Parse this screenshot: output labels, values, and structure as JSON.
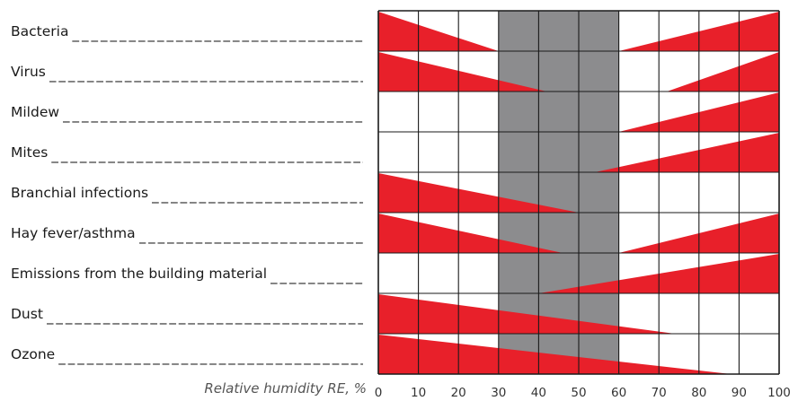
{
  "chart_data": {
    "type": "bar",
    "xlabel": "Relative humidity RE, %",
    "x_ticks": [
      "0",
      "10",
      "20",
      "30",
      "40",
      "50",
      "60",
      "70",
      "80",
      "90",
      "100"
    ],
    "xlim": [
      0,
      100
    ],
    "optimal_zone": [
      30,
      60
    ],
    "colors": {
      "wedge": "#e8202a",
      "optimal": "#8c8c8e",
      "grid": "#1a1a1a"
    },
    "categories": [
      {
        "label": "Bacteria",
        "low_end": 30,
        "high_start": 60
      },
      {
        "label": "Virus",
        "low_end": 42,
        "high_start": 72
      },
      {
        "label": "Mildew",
        "low_end": null,
        "high_start": 60
      },
      {
        "label": "Mites",
        "low_end": null,
        "high_start": 54
      },
      {
        "label": "Branchial infections",
        "low_end": 50,
        "high_start": null
      },
      {
        "label": "Hay fever/asthma",
        "low_end": 46,
        "high_start": 60
      },
      {
        "label": "Emissions from the building material",
        "low_end": null,
        "high_start": 40
      },
      {
        "label": "Dust",
        "low_end": 74,
        "high_start": null
      },
      {
        "label": "Ozone",
        "low_end": 88,
        "high_start": null
      }
    ]
  }
}
